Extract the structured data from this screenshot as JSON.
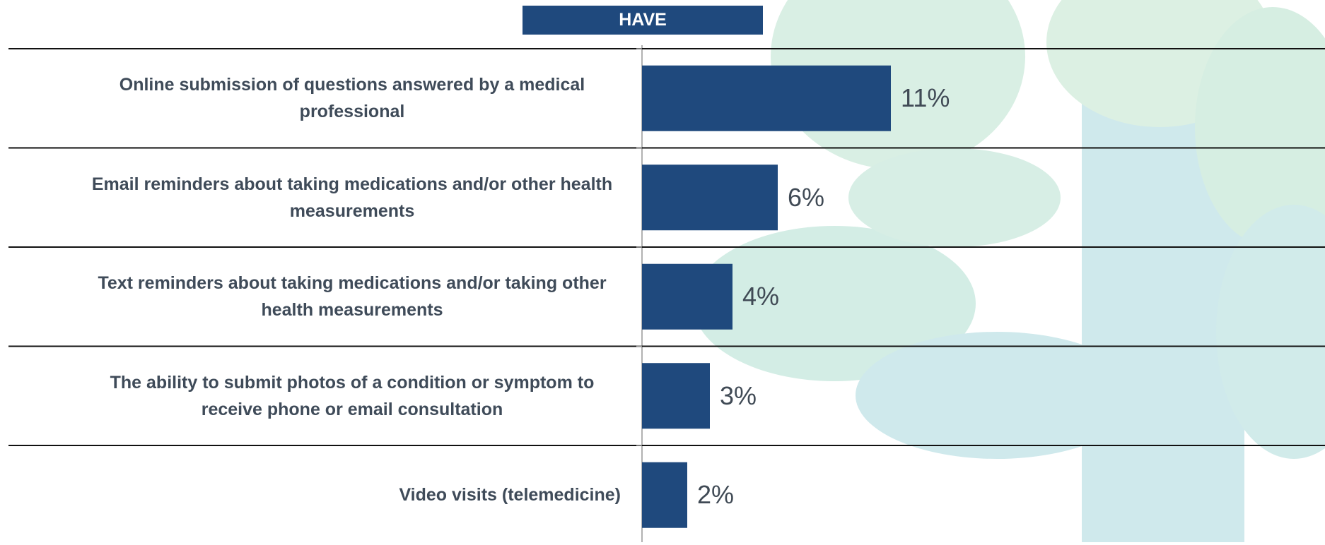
{
  "chart_data": {
    "type": "bar",
    "orientation": "horizontal",
    "title": "HAVE",
    "categories": [
      "Online submission of questions answered by a medical professional",
      "Email reminders about taking medications and/or other health measurements",
      "Text reminders about taking medications and/or taking other health measurements",
      "The ability to submit photos of a condition or symptom to receive phone or email consultation",
      "Video visits (telemedicine)"
    ],
    "values": [
      11,
      6,
      4,
      3,
      2
    ],
    "value_labels": [
      "11%",
      "6%",
      "4%",
      "3%",
      "2%"
    ],
    "color": "#1f497d"
  }
}
